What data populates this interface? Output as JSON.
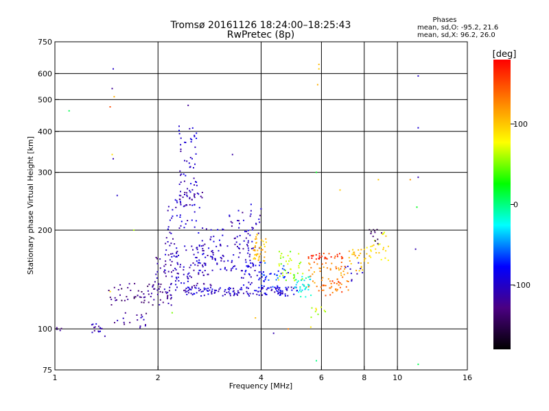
{
  "chart_data": {
    "type": "scatter",
    "title_line1": "Tromsø 20161126 18:24:00–18:25:43",
    "title_line2": "RwPretec (8p)",
    "stats": {
      "heading": "Phases",
      "line_o": "mean, sd,O: -95.2, 21.6",
      "line_x": "mean, sd,X:  96.2, 26.0"
    },
    "xlabel": "Frequency [MHz]",
    "ylabel": "Stationary phase Virtual Height [km]",
    "x_scale": "log",
    "y_scale": "log",
    "xlim": [
      1,
      16
    ],
    "ylim": [
      75,
      750
    ],
    "x_gridlines": [
      2,
      4,
      6,
      8,
      10
    ],
    "y_gridlines": [
      100,
      200,
      300,
      400,
      500,
      600,
      750
    ],
    "x_ticks": [
      {
        "value": 1,
        "label": "1"
      },
      {
        "value": 2,
        "label": "2"
      },
      {
        "value": 4,
        "label": "4"
      },
      {
        "value": 6,
        "label": "6"
      },
      {
        "value": 8,
        "label": "8"
      },
      {
        "value": 10,
        "label": "10"
      },
      {
        "value": 16,
        "label": "16"
      }
    ],
    "y_ticks": [
      {
        "value": 75,
        "label": "75"
      },
      {
        "value": 100,
        "label": "100"
      },
      {
        "value": 200,
        "label": "200"
      },
      {
        "value": 300,
        "label": "300"
      },
      {
        "value": 400,
        "label": "400"
      },
      {
        "value": 500,
        "label": "500"
      },
      {
        "value": 600,
        "label": "600"
      },
      {
        "value": 750,
        "label": "750"
      }
    ],
    "colorbar": {
      "label": "[deg]",
      "range": [
        -180,
        180
      ],
      "ticks": [
        {
          "value": 100,
          "label": "100"
        },
        {
          "value": 0,
          "label": "0"
        },
        {
          "value": -100,
          "label": "-100"
        }
      ],
      "colormap": [
        "#000000",
        "#4b0082",
        "#0000ff",
        "#00ffff",
        "#00ff00",
        "#ffff00",
        "#ff8000",
        "#ff0000"
      ]
    },
    "clusters": [
      {
        "f": [
          1.0,
          1.05
        ],
        "h": [
          98,
          101
        ],
        "phase": -120,
        "n": 4
      },
      {
        "f": [
          1.28,
          1.38
        ],
        "h": [
          97,
          104
        ],
        "phase": -110,
        "n": 14
      },
      {
        "f": [
          1.48,
          1.85
        ],
        "h": [
          100,
          112
        ],
        "phase": -118,
        "n": 18
      },
      {
        "f": [
          1.42,
          2.15
        ],
        "h": [
          118,
          138
        ],
        "phase": -130,
        "n": 55
      },
      {
        "f": [
          1.95,
          2.2
        ],
        "h": [
          118,
          170
        ],
        "phase": -115,
        "n": 45
      },
      {
        "f": [
          2.1,
          2.3
        ],
        "h": [
          140,
          250
        ],
        "phase": -105,
        "n": 35
      },
      {
        "f": [
          2.25,
          2.9
        ],
        "h": [
          130,
          180
        ],
        "phase": -108,
        "n": 90
      },
      {
        "f": [
          2.3,
          2.6
        ],
        "h": [
          200,
          420
        ],
        "phase": -100,
        "n": 70
      },
      {
        "f": [
          2.3,
          2.7
        ],
        "h": [
          232,
          262
        ],
        "phase": -112,
        "n": 25
      },
      {
        "f": [
          2.6,
          3.8
        ],
        "h": [
          150,
          205
        ],
        "phase": -102,
        "n": 90
      },
      {
        "f": [
          2.4,
          5.2
        ],
        "h": [
          126,
          134
        ],
        "phase": -98,
        "n": 140
      },
      {
        "f": [
          3.2,
          4.0
        ],
        "h": [
          175,
          240
        ],
        "phase": -108,
        "n": 40
      },
      {
        "f": [
          3.5,
          4.1
        ],
        "h": [
          135,
          160
        ],
        "phase": -95,
        "n": 35
      },
      {
        "f": [
          3.8,
          4.15
        ],
        "h": [
          160,
          195
        ],
        "phase": 105,
        "n": 40
      },
      {
        "f": [
          4.0,
          4.8
        ],
        "h": [
          130,
          160
        ],
        "phase": -70,
        "n": 35
      },
      {
        "f": [
          4.5,
          5.3
        ],
        "h": [
          140,
          175
        ],
        "phase": 55,
        "n": 40
      },
      {
        "f": [
          5.0,
          5.6
        ],
        "h": [
          125,
          145
        ],
        "phase": -20,
        "n": 35
      },
      {
        "f": [
          5.5,
          7.0
        ],
        "h": [
          163,
          170
        ],
        "phase": 160,
        "n": 30
      },
      {
        "f": [
          5.5,
          7.2
        ],
        "h": [
          130,
          160
        ],
        "phase": 125,
        "n": 60
      },
      {
        "f": [
          6.0,
          7.1
        ],
        "h": [
          125,
          140
        ],
        "phase": 145,
        "n": 20
      },
      {
        "f": [
          7.2,
          8.3
        ],
        "h": [
          150,
          175
        ],
        "phase": 110,
        "n": 30
      },
      {
        "f": [
          8.0,
          9.5
        ],
        "h": [
          160,
          200
        ],
        "phase": 85,
        "n": 25
      },
      {
        "f": [
          8.2,
          9.0
        ],
        "h": [
          180,
          205
        ],
        "phase": -150,
        "n": 12
      },
      {
        "f": [
          7.0,
          8.0
        ],
        "h": [
          140,
          160
        ],
        "phase": -100,
        "n": 10
      },
      {
        "f": [
          5.5,
          6.2
        ],
        "h": [
          100,
          120
        ],
        "phase": 70,
        "n": 10
      }
    ],
    "points": [
      {
        "f": 1.1,
        "h": 462,
        "phase": 10
      },
      {
        "f": 1.45,
        "h": 475,
        "phase": 150
      },
      {
        "f": 1.47,
        "h": 540,
        "phase": -120
      },
      {
        "f": 1.48,
        "h": 620,
        "phase": -100
      },
      {
        "f": 1.49,
        "h": 510,
        "phase": 110
      },
      {
        "f": 1.47,
        "h": 340,
        "phase": 90
      },
      {
        "f": 1.48,
        "h": 330,
        "phase": -110
      },
      {
        "f": 1.52,
        "h": 255,
        "phase": -100
      },
      {
        "f": 2.45,
        "h": 480,
        "phase": -120
      },
      {
        "f": 3.3,
        "h": 340,
        "phase": -115
      },
      {
        "f": 5.9,
        "h": 640,
        "phase": 105
      },
      {
        "f": 5.9,
        "h": 620,
        "phase": 100
      },
      {
        "f": 5.85,
        "h": 555,
        "phase": 110
      },
      {
        "f": 5.8,
        "h": 300,
        "phase": 20
      },
      {
        "f": 6.8,
        "h": 265,
        "phase": 100
      },
      {
        "f": 8.8,
        "h": 285,
        "phase": 100
      },
      {
        "f": 10.9,
        "h": 285,
        "phase": 120
      },
      {
        "f": 11.5,
        "h": 590,
        "phase": -100
      },
      {
        "f": 11.5,
        "h": 410,
        "phase": -95
      },
      {
        "f": 11.5,
        "h": 290,
        "phase": -110
      },
      {
        "f": 11.4,
        "h": 235,
        "phase": 20
      },
      {
        "f": 11.3,
        "h": 175,
        "phase": -110
      },
      {
        "f": 11.5,
        "h": 78,
        "phase": 10
      },
      {
        "f": 5.8,
        "h": 80,
        "phase": 0
      },
      {
        "f": 4.35,
        "h": 97,
        "phase": -110
      },
      {
        "f": 4.8,
        "h": 100,
        "phase": 130
      },
      {
        "f": 3.85,
        "h": 108,
        "phase": 105
      },
      {
        "f": 1.7,
        "h": 200,
        "phase": 60
      },
      {
        "f": 1.45,
        "h": 130,
        "phase": 90
      },
      {
        "f": 1.4,
        "h": 95,
        "phase": -110
      },
      {
        "f": 2.2,
        "h": 112,
        "phase": 50
      }
    ]
  }
}
